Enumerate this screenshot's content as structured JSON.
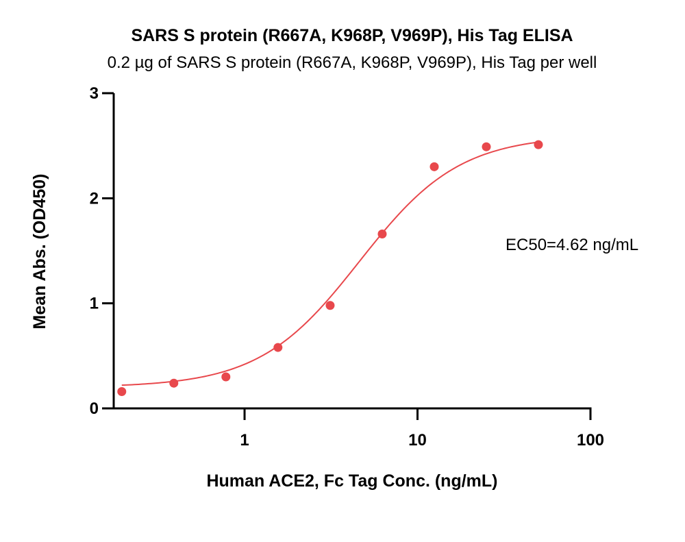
{
  "chart_data": {
    "type": "scatter",
    "title": "SARS S protein (R667A, K968P, V969P), His Tag ELISA",
    "subtitle": "0.2 µg of SARS S protein (R667A, K968P, V969P), His Tag per well",
    "xlabel": "Human ACE2, Fc Tag Conc. (ng/mL)",
    "ylabel": "Mean Abs. (OD450)",
    "x_scale": "log",
    "xlim": [
      0.15,
      100
    ],
    "ylim": [
      0,
      3
    ],
    "x_ticks": [
      1,
      10,
      100
    ],
    "x_tick_labels": [
      "1",
      "10",
      "100"
    ],
    "y_ticks": [
      0,
      1,
      2,
      3
    ],
    "y_tick_labels": [
      "0",
      "1",
      "2",
      "3"
    ],
    "grid": false,
    "color": "#e8484c",
    "series": [
      {
        "x": [
          0.195,
          0.39,
          0.78,
          1.56,
          3.125,
          6.25,
          12.5,
          25,
          50
        ],
        "y": [
          0.16,
          0.24,
          0.3,
          0.58,
          0.98,
          1.66,
          2.3,
          2.49,
          2.51
        ]
      }
    ],
    "fit": {
      "model": "4PL",
      "bottom": 0.2,
      "top": 2.6,
      "ec50": 4.62,
      "hill": 1.5,
      "x_range": [
        0.195,
        50
      ]
    },
    "annotation": "EC50=4.62 ng/mL"
  }
}
